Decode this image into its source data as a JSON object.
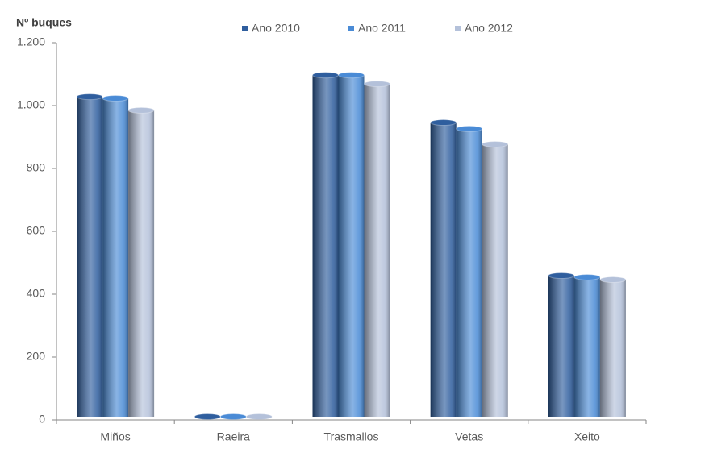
{
  "chart_data": {
    "type": "bar",
    "y_label": "Nº buques",
    "categories": [
      "Miños",
      "Raeira",
      "Trasmallos",
      "Vetas",
      "Xeito"
    ],
    "series": [
      {
        "name": "Ano 2010",
        "color": "#2f5e9e",
        "values": [
          1028,
          10,
          1097,
          946,
          459
        ]
      },
      {
        "name": "Ano 2011",
        "color": "#4a8bd6",
        "values": [
          1023,
          10,
          1097,
          926,
          454
        ]
      },
      {
        "name": "Ano 2012",
        "color": "#b4c1da",
        "values": [
          985,
          8,
          1069,
          877,
          446
        ]
      }
    ],
    "ylim": [
      0,
      1200
    ],
    "yticks": [
      0,
      200,
      400,
      600,
      800,
      {
        "value": 1000,
        "label": "1.000"
      },
      {
        "value": 1200,
        "label": "1.200"
      }
    ],
    "grid": false
  }
}
